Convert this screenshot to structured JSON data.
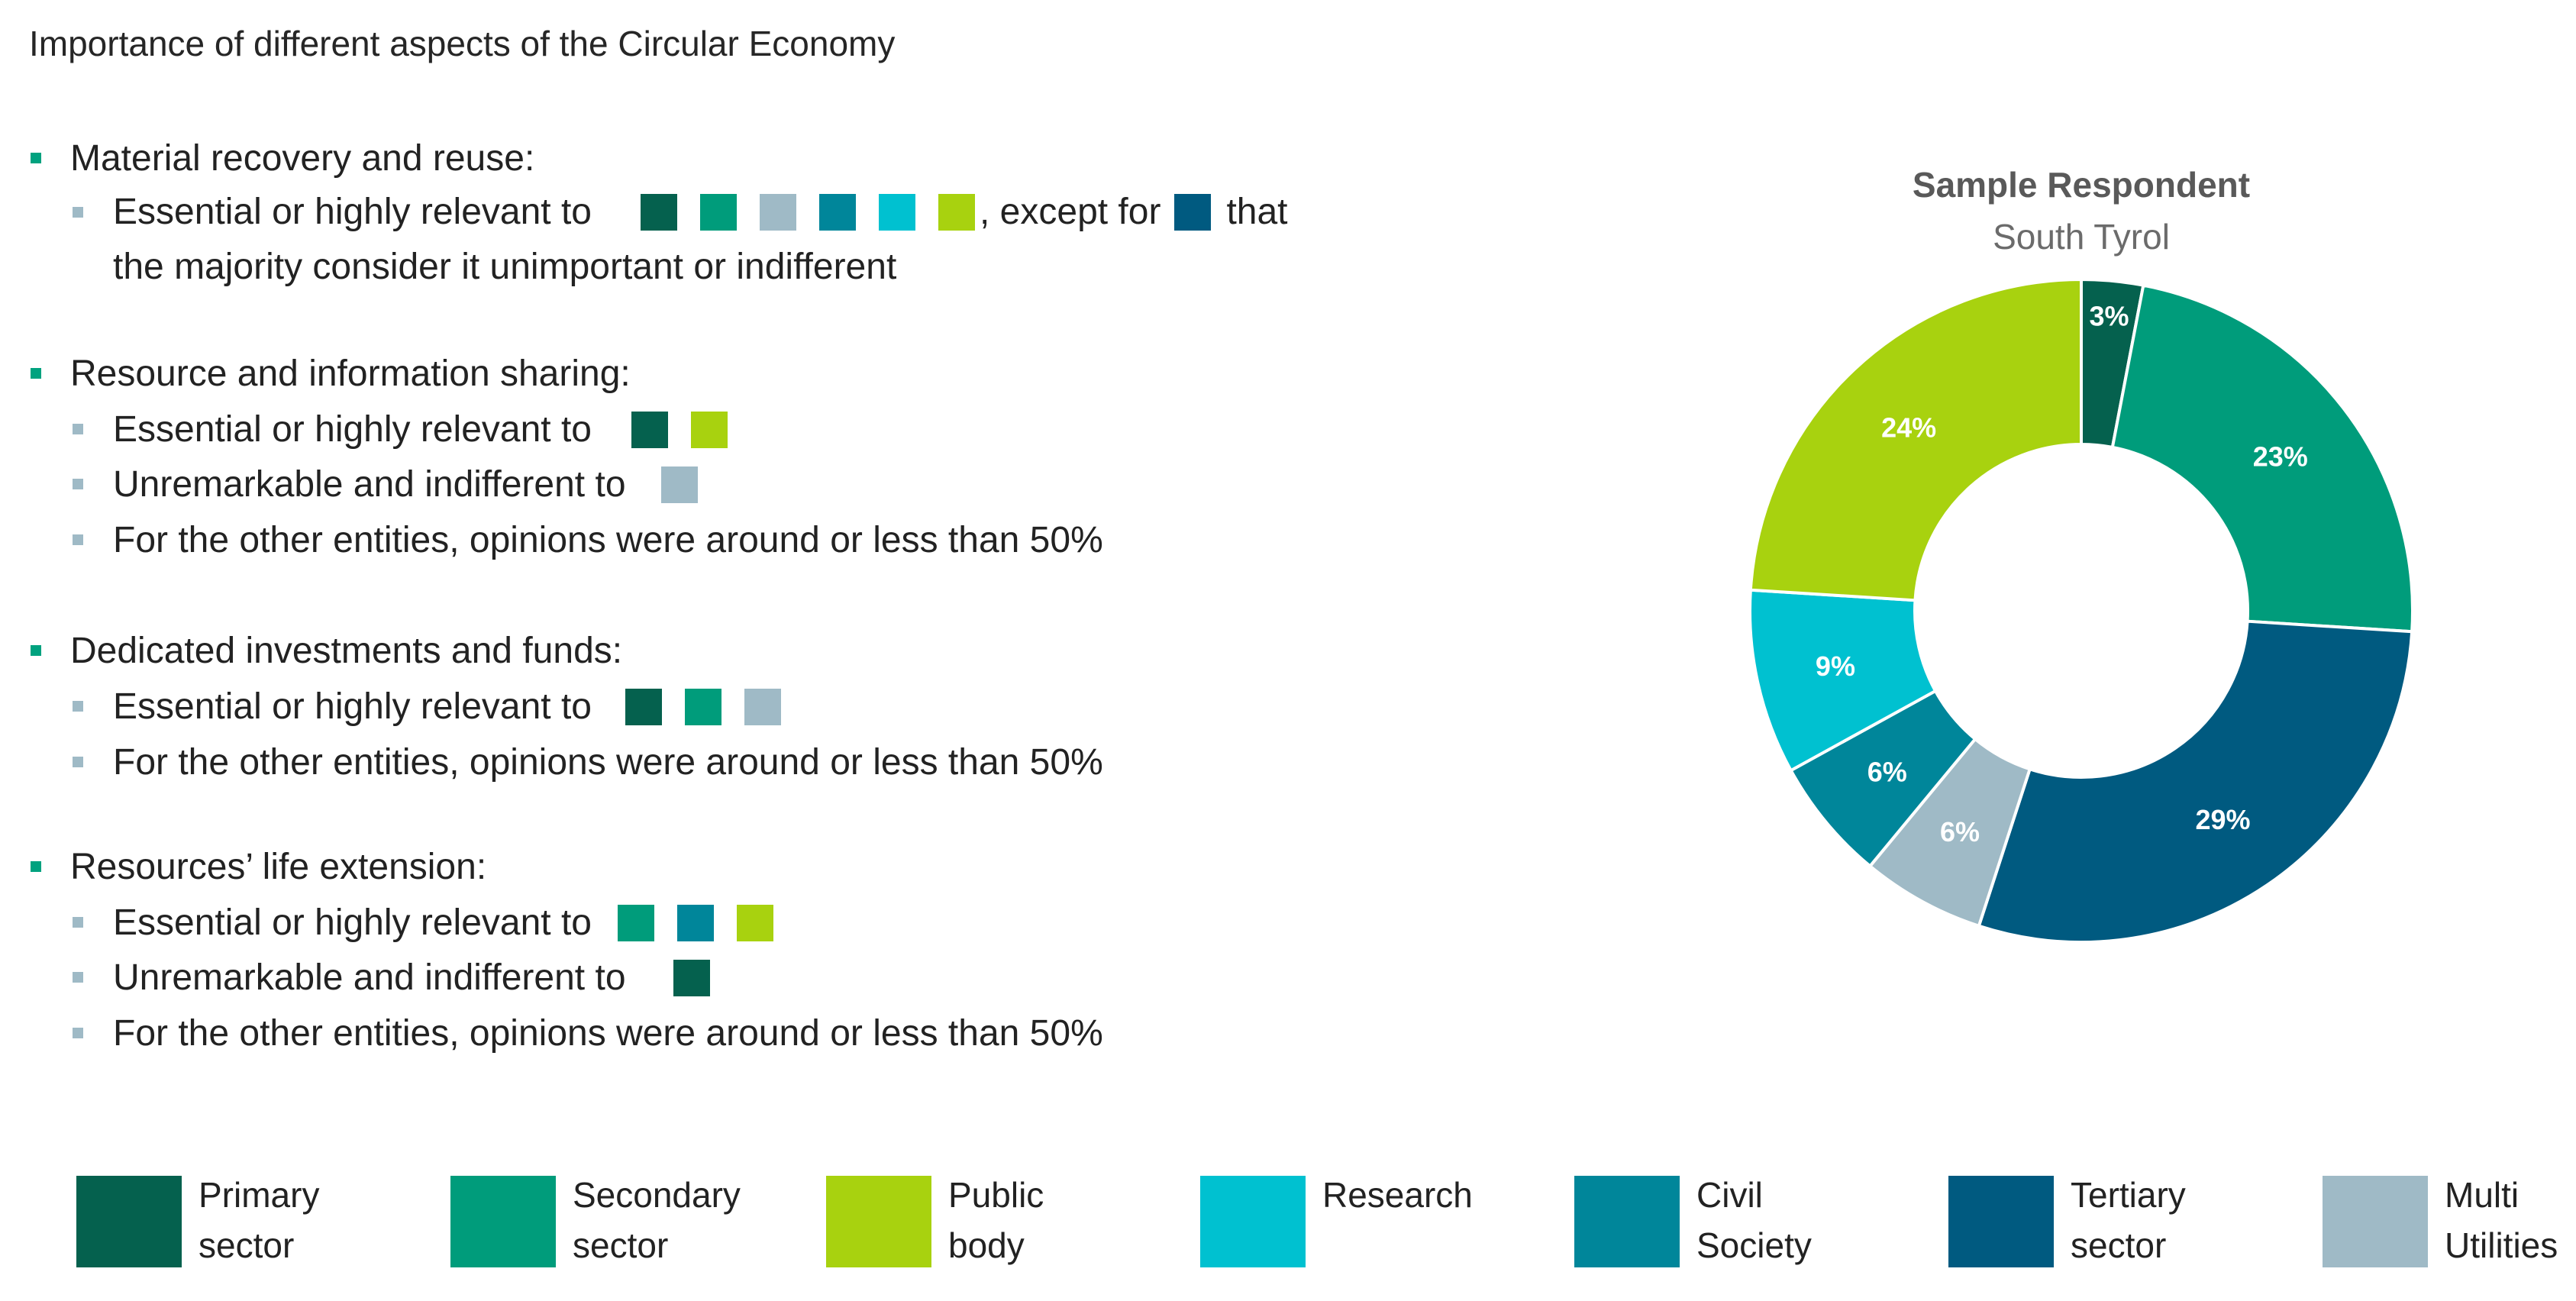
{
  "colors": {
    "primary": "#05614e",
    "secondary": "#009c7b",
    "public": "#a8d20f",
    "research": "#00c1d0",
    "civil": "#00869a",
    "tertiary": "#005a80",
    "multi": "#9fbac6"
  },
  "page_title": "Importance of different aspects of the Circular Economy",
  "sections": [
    {
      "heading": "Material recovery and reuse:",
      "lines": [
        {
          "text": "Essential or highly relevant to",
          "swatches": [
            "primary",
            "secondary",
            "multi",
            "civil",
            "research",
            "public"
          ],
          "after": ", except for",
          "swatch2": "tertiary",
          "after2": "that"
        },
        {
          "text": "the majority consider it unimportant or indifferent"
        }
      ]
    },
    {
      "heading": "Resource and information sharing:",
      "lines": [
        {
          "text": "Essential or highly relevant to",
          "swatches": [
            "primary",
            "public"
          ]
        },
        {
          "text": "Unremarkable and indifferent to",
          "swatches": [
            "multi"
          ]
        },
        {
          "text": "For the other entities, opinions were around or less than 50%"
        }
      ]
    },
    {
      "heading": "Dedicated investments and funds:",
      "lines": [
        {
          "text": "Essential or highly relevant to",
          "swatches": [
            "primary",
            "secondary",
            "multi"
          ]
        },
        {
          "text": "For the other entities, opinions were around or less than 50%"
        }
      ]
    },
    {
      "heading": "Resources’ life extension:",
      "lines": [
        {
          "text": "Essential or highly relevant to",
          "swatches": [
            "secondary",
            "civil",
            "public"
          ]
        },
        {
          "text": "Unremarkable and indifferent to",
          "swatches": [
            "primary"
          ]
        },
        {
          "text": "For the other entities, opinions were around or less than 50%"
        }
      ]
    }
  ],
  "chart_data": {
    "type": "pie",
    "variant": "donut",
    "title": "Sample Respondent",
    "subtitle": "South Tyrol",
    "slices": [
      {
        "name": "Primary sector",
        "key": "primary",
        "value": 3,
        "label": "3%"
      },
      {
        "name": "Secondary sector",
        "key": "secondary",
        "value": 23,
        "label": "23%"
      },
      {
        "name": "Tertiary sector",
        "key": "tertiary",
        "value": 29,
        "label": "29%"
      },
      {
        "name": "Multi Utilities",
        "key": "multi",
        "value": 6,
        "label": "6%"
      },
      {
        "name": "Civil Society",
        "key": "civil",
        "value": 6,
        "label": "6%"
      },
      {
        "name": "Research",
        "key": "research",
        "value": 9,
        "label": "9%"
      },
      {
        "name": "Public body",
        "key": "public",
        "value": 24,
        "label": "24%"
      }
    ]
  },
  "legend": [
    {
      "key": "primary",
      "label": "Primary\nsector"
    },
    {
      "key": "secondary",
      "label": "Secondary\nsector"
    },
    {
      "key": "public",
      "label": "Public\nbody"
    },
    {
      "key": "research",
      "label": "Research"
    },
    {
      "key": "civil",
      "label": "Civil\nSociety"
    },
    {
      "key": "tertiary",
      "label": "Tertiary\nsector"
    },
    {
      "key": "multi",
      "label": "Multi\nUtilities"
    }
  ]
}
